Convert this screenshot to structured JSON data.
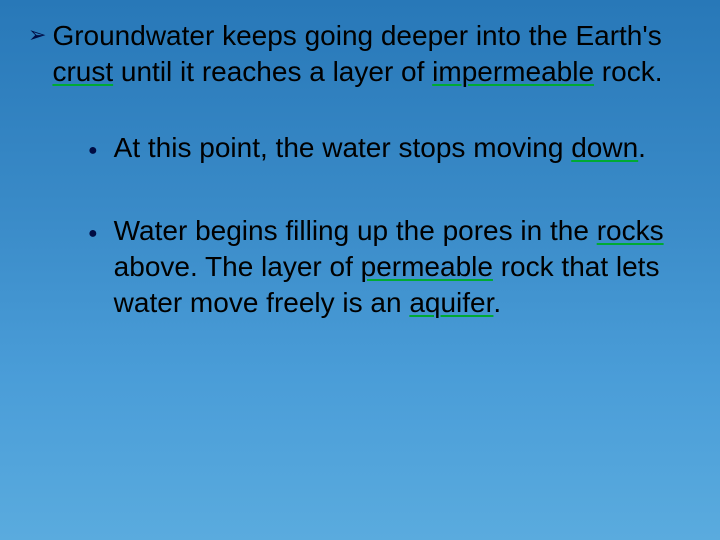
{
  "slide": {
    "background_gradient": [
      "#2878b8",
      "#3a8bc8",
      "#4a9dd8",
      "#5aabde"
    ],
    "text_color": "#000000",
    "underline_color": "#00aa33",
    "bullet_color": "#000c44",
    "main_fontsize": 28,
    "sub_fontsize": 28,
    "main": {
      "t1": "Groundwater keeps going deeper into the Earth's ",
      "u1": "crust",
      "t2": " until it reaches a layer of ",
      "u2": "impermeable",
      "t3": " rock."
    },
    "sub1": {
      "t1": "At this point, the water stops moving ",
      "u1": "down",
      "t2": "."
    },
    "sub2": {
      "t1": "Water begins filling up the pores in the ",
      "u1": "rocks",
      "t2": " above.  The layer of ",
      "u2": "permeable",
      "t3": " rock that lets water move freely is an ",
      "u3": "aquifer",
      "t4": "."
    }
  }
}
